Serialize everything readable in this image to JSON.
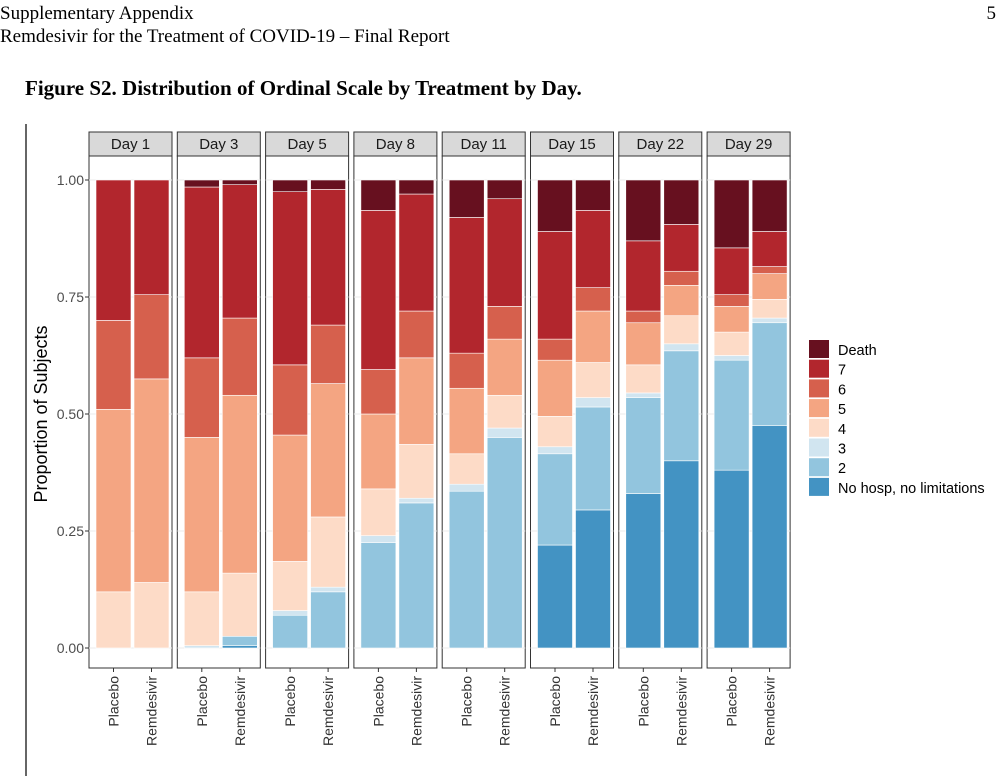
{
  "header": {
    "line1": "Supplementary Appendix",
    "line2": "Remdesivir for the Treatment of COVID-19 – Final Report",
    "page_number": "5"
  },
  "figure": {
    "caption": "Figure S2. Distribution of Ordinal Scale by Treatment by Day."
  },
  "colors": {
    "Death": "#67101f",
    "7": "#b2262d",
    "6": "#d6604d",
    "5": "#f4a582",
    "4": "#fddbc7",
    "3": "#d1e5f0",
    "2": "#92c5de",
    "No hosp, no limitations": "#4393c3"
  },
  "chart_data": {
    "type": "bar",
    "stacked": true,
    "faceted_by": "day",
    "ylabel": "Proportion of Subjects",
    "ylim": [
      0,
      1
    ],
    "y_ticks": [
      "0.00",
      "0.25",
      "0.50",
      "0.75",
      "1.00"
    ],
    "categories": [
      "Placebo",
      "Remdesivir"
    ],
    "legend_position": "right",
    "legend_order": [
      "Death",
      "7",
      "6",
      "5",
      "4",
      "3",
      "2",
      "No hosp, no limitations"
    ],
    "stack_order_bottom_to_top": [
      "No hosp, no limitations",
      "2",
      "3",
      "4",
      "5",
      "6",
      "7",
      "Death"
    ],
    "panels": [
      {
        "day": "Day 1",
        "bars": [
          {
            "group": "Placebo",
            "segments": {
              "No hosp, no limitations": 0,
              "2": 0,
              "3": 0,
              "4": 0.12,
              "5": 0.39,
              "6": 0.19,
              "7": 0.3,
              "Death": 0
            }
          },
          {
            "group": "Remdesivir",
            "segments": {
              "No hosp, no limitations": 0,
              "2": 0,
              "3": 0,
              "4": 0.14,
              "5": 0.435,
              "6": 0.18,
              "7": 0.245,
              "Death": 0
            }
          }
        ]
      },
      {
        "day": "Day 3",
        "bars": [
          {
            "group": "Placebo",
            "segments": {
              "No hosp, no limitations": 0,
              "2": 0,
              "3": 0.005,
              "4": 0.115,
              "5": 0.33,
              "6": 0.17,
              "7": 0.365,
              "Death": 0.015
            }
          },
          {
            "group": "Remdesivir",
            "segments": {
              "No hosp, no limitations": 0.005,
              "2": 0.02,
              "3": 0,
              "4": 0.135,
              "5": 0.38,
              "6": 0.165,
              "7": 0.285,
              "Death": 0.01
            }
          }
        ]
      },
      {
        "day": "Day 5",
        "bars": [
          {
            "group": "Placebo",
            "segments": {
              "No hosp, no limitations": 0,
              "2": 0.07,
              "3": 0.01,
              "4": 0.105,
              "5": 0.27,
              "6": 0.15,
              "7": 0.37,
              "Death": 0.025
            }
          },
          {
            "group": "Remdesivir",
            "segments": {
              "No hosp, no limitations": 0,
              "2": 0.12,
              "3": 0.01,
              "4": 0.15,
              "5": 0.285,
              "6": 0.125,
              "7": 0.29,
              "Death": 0.02
            }
          }
        ]
      },
      {
        "day": "Day 8",
        "bars": [
          {
            "group": "Placebo",
            "segments": {
              "No hosp, no limitations": 0,
              "2": 0.225,
              "3": 0.015,
              "4": 0.1,
              "5": 0.16,
              "6": 0.095,
              "7": 0.34,
              "Death": 0.065
            }
          },
          {
            "group": "Remdesivir",
            "segments": {
              "No hosp, no limitations": 0,
              "2": 0.31,
              "3": 0.01,
              "4": 0.115,
              "5": 0.185,
              "6": 0.1,
              "7": 0.25,
              "Death": 0.03
            }
          }
        ]
      },
      {
        "day": "Day 11",
        "bars": [
          {
            "group": "Placebo",
            "segments": {
              "No hosp, no limitations": 0,
              "2": 0.335,
              "3": 0.015,
              "4": 0.065,
              "5": 0.14,
              "6": 0.075,
              "7": 0.29,
              "Death": 0.08
            }
          },
          {
            "group": "Remdesivir",
            "segments": {
              "No hosp, no limitations": 0,
              "2": 0.45,
              "3": 0.02,
              "4": 0.07,
              "5": 0.12,
              "6": 0.07,
              "7": 0.23,
              "Death": 0.04
            }
          }
        ]
      },
      {
        "day": "Day 15",
        "bars": [
          {
            "group": "Placebo",
            "segments": {
              "No hosp, no limitations": 0.22,
              "2": 0.195,
              "3": 0.015,
              "4": 0.065,
              "5": 0.12,
              "6": 0.045,
              "7": 0.23,
              "Death": 0.11
            }
          },
          {
            "group": "Remdesivir",
            "segments": {
              "No hosp, no limitations": 0.295,
              "2": 0.22,
              "3": 0.02,
              "4": 0.075,
              "5": 0.11,
              "6": 0.05,
              "7": 0.165,
              "Death": 0.065
            }
          }
        ]
      },
      {
        "day": "Day 22",
        "bars": [
          {
            "group": "Placebo",
            "segments": {
              "No hosp, no limitations": 0.33,
              "2": 0.205,
              "3": 0.01,
              "4": 0.06,
              "5": 0.09,
              "6": 0.025,
              "7": 0.15,
              "Death": 0.13
            }
          },
          {
            "group": "Remdesivir",
            "segments": {
              "No hosp, no limitations": 0.4,
              "2": 0.235,
              "3": 0.015,
              "4": 0.06,
              "5": 0.065,
              "6": 0.03,
              "7": 0.1,
              "Death": 0.095
            }
          }
        ]
      },
      {
        "day": "Day 29",
        "bars": [
          {
            "group": "Placebo",
            "segments": {
              "No hosp, no limitations": 0.38,
              "2": 0.235,
              "3": 0.01,
              "4": 0.05,
              "5": 0.055,
              "6": 0.025,
              "7": 0.1,
              "Death": 0.145
            }
          },
          {
            "group": "Remdesivir",
            "segments": {
              "No hosp, no limitations": 0.475,
              "2": 0.22,
              "3": 0.01,
              "4": 0.04,
              "5": 0.055,
              "6": 0.015,
              "7": 0.075,
              "Death": 0.11
            }
          }
        ]
      }
    ]
  }
}
